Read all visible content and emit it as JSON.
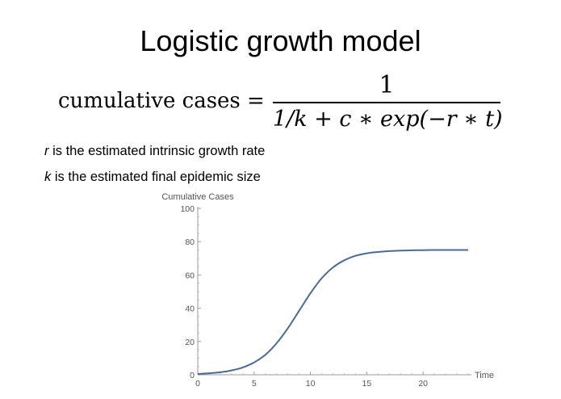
{
  "title": "Logistic growth model",
  "formula": {
    "lhs": "cumulative cases =",
    "numerator": "1",
    "denominator": "1/k + c ∗ exp(−r ∗ t)"
  },
  "notes": [
    {
      "symbol": "r",
      "text": " is the estimated intrinsic growth rate"
    },
    {
      "symbol": "k",
      "text": " is the estimated final epidemic size"
    }
  ],
  "chart_data": {
    "type": "line",
    "ylabel": "Cumulative Cases",
    "xlabel": "Time",
    "xlim": [
      0,
      24
    ],
    "ylim": [
      0,
      100
    ],
    "xticks": [
      0,
      5,
      10,
      15,
      20
    ],
    "yticks": [
      0,
      20,
      40,
      60,
      80,
      100
    ],
    "grid": false,
    "series": [
      {
        "color": "#4a6a95",
        "x": [
          0,
          1,
          2,
          3,
          4,
          5,
          6,
          7,
          8,
          9,
          10,
          11,
          12,
          13,
          14,
          15,
          16,
          17,
          18,
          19,
          20,
          21,
          22,
          23,
          24
        ],
        "y": [
          0.5,
          0.9,
          1.5,
          2.6,
          4.4,
          7.4,
          12,
          19,
          28,
          38.5,
          49,
          58,
          64.5,
          68.8,
          71.5,
          73,
          73.8,
          74.3,
          74.6,
          74.8,
          74.9,
          75,
          75,
          75,
          75
        ]
      }
    ]
  }
}
